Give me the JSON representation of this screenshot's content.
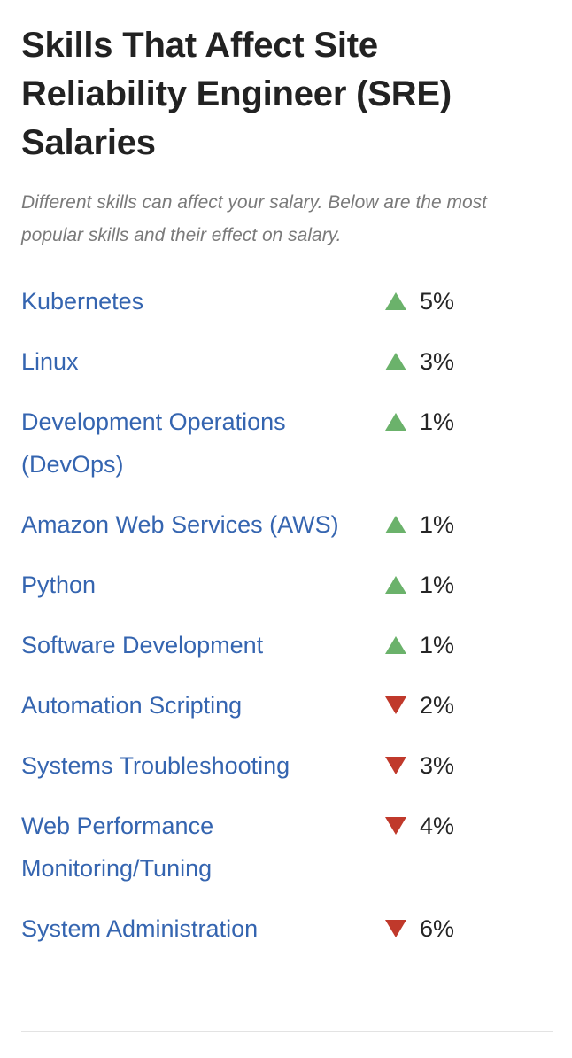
{
  "header": {
    "title": "Skills That Affect Site Reliability Engineer (SRE) Salaries",
    "subtitle": "Different skills can affect your salary. Below are the most popular skills and their effect on salary."
  },
  "colors": {
    "link": "#3565b0",
    "up": "#6bb26b",
    "down": "#c0392b"
  },
  "skills": [
    {
      "name": "Kubernetes",
      "direction": "up",
      "effect": "5%"
    },
    {
      "name": "Linux",
      "direction": "up",
      "effect": "3%"
    },
    {
      "name": "Development Operations (DevOps)",
      "direction": "up",
      "effect": "1%"
    },
    {
      "name": "Amazon Web Services (AWS)",
      "direction": "up",
      "effect": "1%"
    },
    {
      "name": "Python",
      "direction": "up",
      "effect": "1%"
    },
    {
      "name": "Software Development",
      "direction": "up",
      "effect": "1%"
    },
    {
      "name": "Automation Scripting",
      "direction": "down",
      "effect": "2%"
    },
    {
      "name": "Systems Troubleshooting",
      "direction": "down",
      "effect": "3%"
    },
    {
      "name": "Web Performance Monitoring/Tuning",
      "direction": "down",
      "effect": "4%"
    },
    {
      "name": "System Administration",
      "direction": "down",
      "effect": "6%"
    }
  ]
}
